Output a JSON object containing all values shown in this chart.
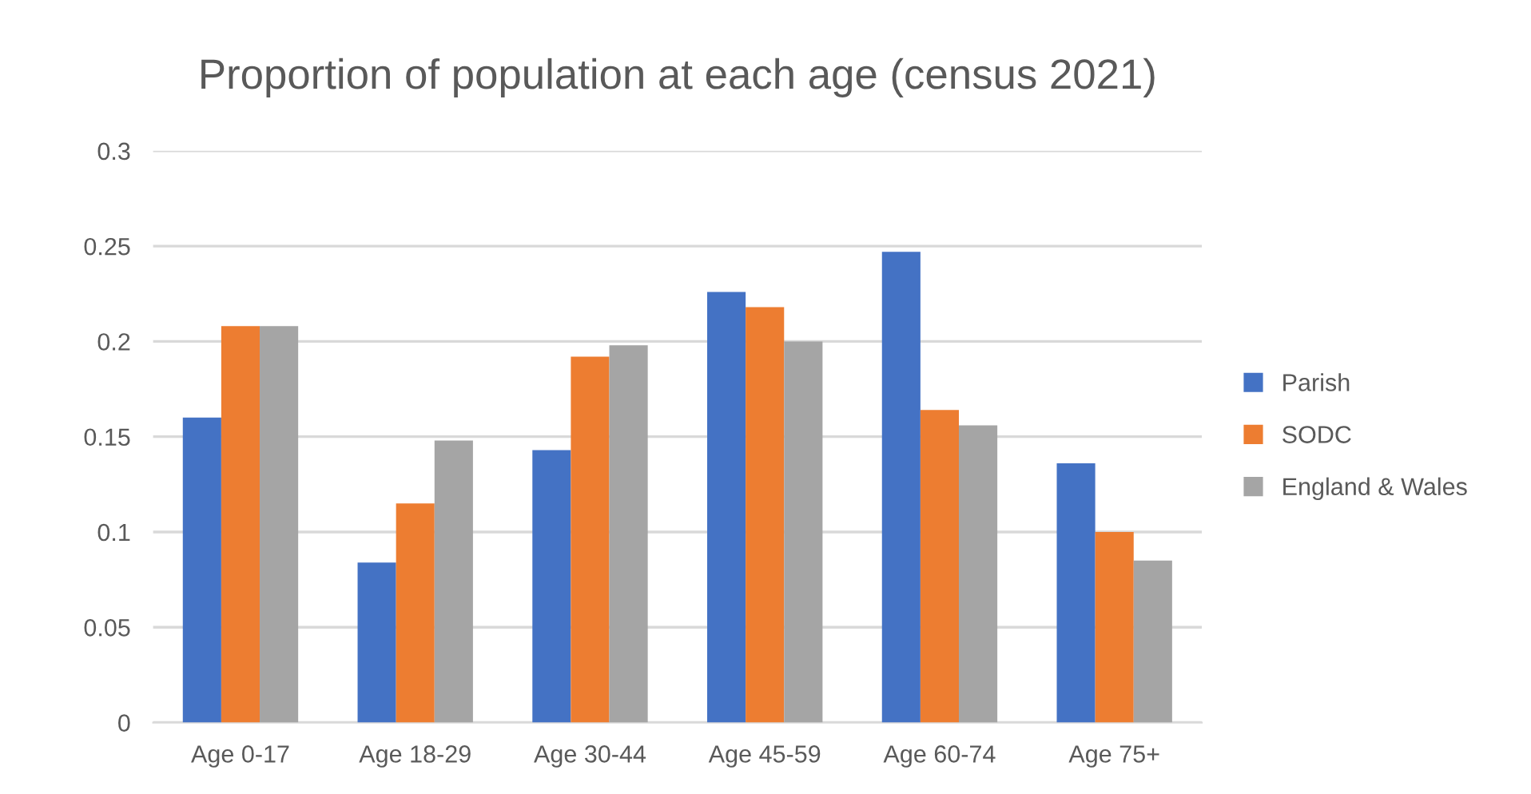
{
  "chart_data": {
    "type": "bar",
    "title": "Proportion of population at each age (census 2021)",
    "categories": [
      "Age 0-17",
      "Age 18-29",
      "Age 30-44",
      "Age 45-59",
      "Age 60-74",
      "Age 75+"
    ],
    "series": [
      {
        "name": "Parish",
        "color": "#4472c4",
        "values": [
          0.16,
          0.084,
          0.143,
          0.226,
          0.247,
          0.136
        ]
      },
      {
        "name": "SODC",
        "color": "#ed7d31",
        "values": [
          0.208,
          0.115,
          0.192,
          0.218,
          0.164,
          0.1
        ]
      },
      {
        "name": "England & Wales",
        "color": "#a5a5a5",
        "values": [
          0.208,
          0.148,
          0.198,
          0.2,
          0.156,
          0.085
        ]
      }
    ],
    "ylim": [
      0,
      0.3
    ],
    "yticks": [
      0,
      0.05,
      0.1,
      0.15,
      0.2,
      0.25,
      0.3
    ],
    "grid": "y",
    "legend": "right"
  }
}
